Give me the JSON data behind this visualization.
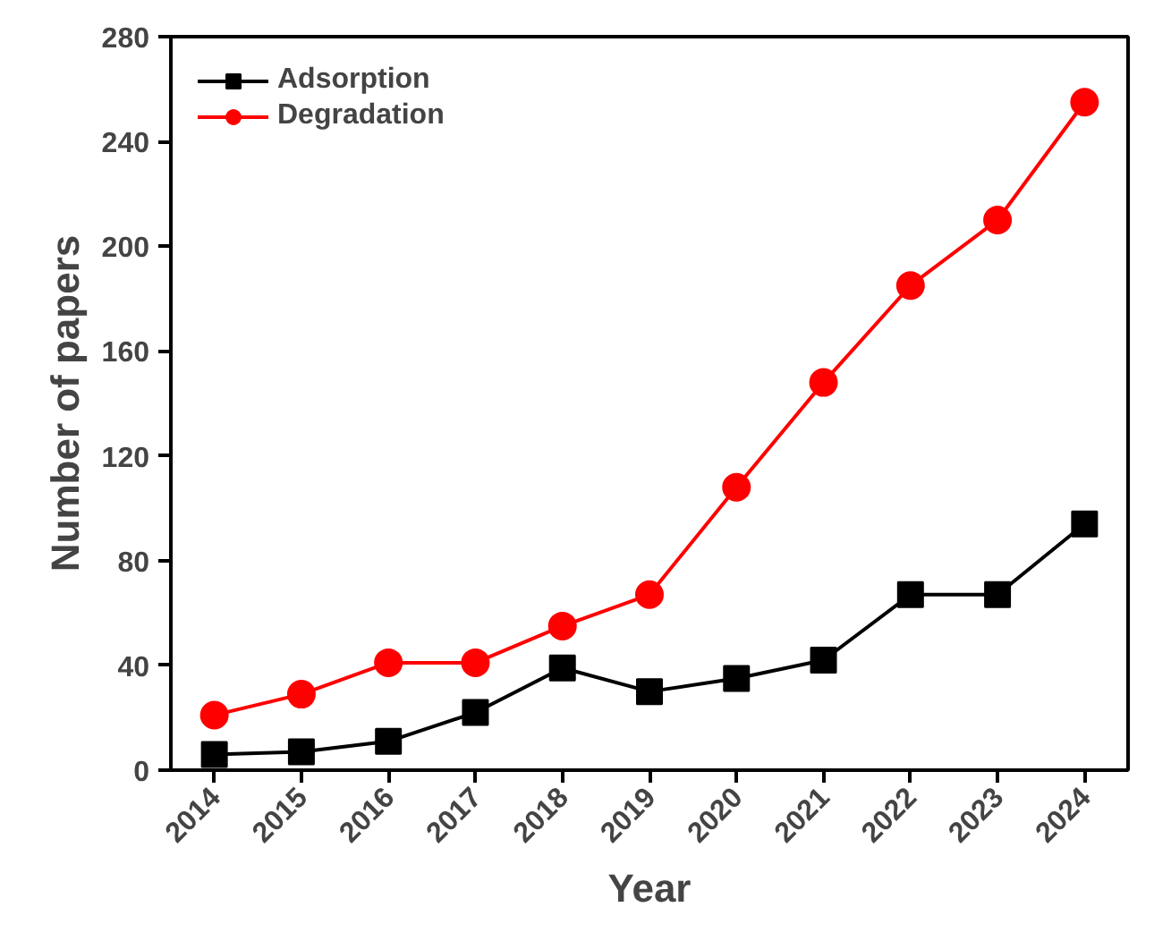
{
  "chart_data": {
    "type": "line",
    "xlabel": "Year",
    "ylabel": "Number of papers",
    "x": [
      2014,
      2015,
      2016,
      2017,
      2018,
      2019,
      2020,
      2021,
      2022,
      2023,
      2024
    ],
    "xlim": [
      2013.5,
      2024.5
    ],
    "xticks": [
      2014,
      2015,
      2016,
      2017,
      2018,
      2019,
      2020,
      2021,
      2022,
      2023,
      2024
    ],
    "ylim": [
      0,
      280
    ],
    "yticks": [
      0,
      40,
      80,
      120,
      160,
      200,
      240,
      280
    ],
    "series": [
      {
        "name": "Adsorption",
        "color": "#000000",
        "marker": "square",
        "values": [
          6,
          7,
          11,
          22,
          39,
          30,
          35,
          42,
          67,
          67,
          94
        ]
      },
      {
        "name": "Degradation",
        "color": "#ff0000",
        "marker": "circle",
        "values": [
          21,
          29,
          41,
          41,
          55,
          67,
          108,
          148,
          185,
          210,
          255
        ]
      }
    ],
    "legend": "top left",
    "grid": false,
    "line_style": "solid"
  }
}
